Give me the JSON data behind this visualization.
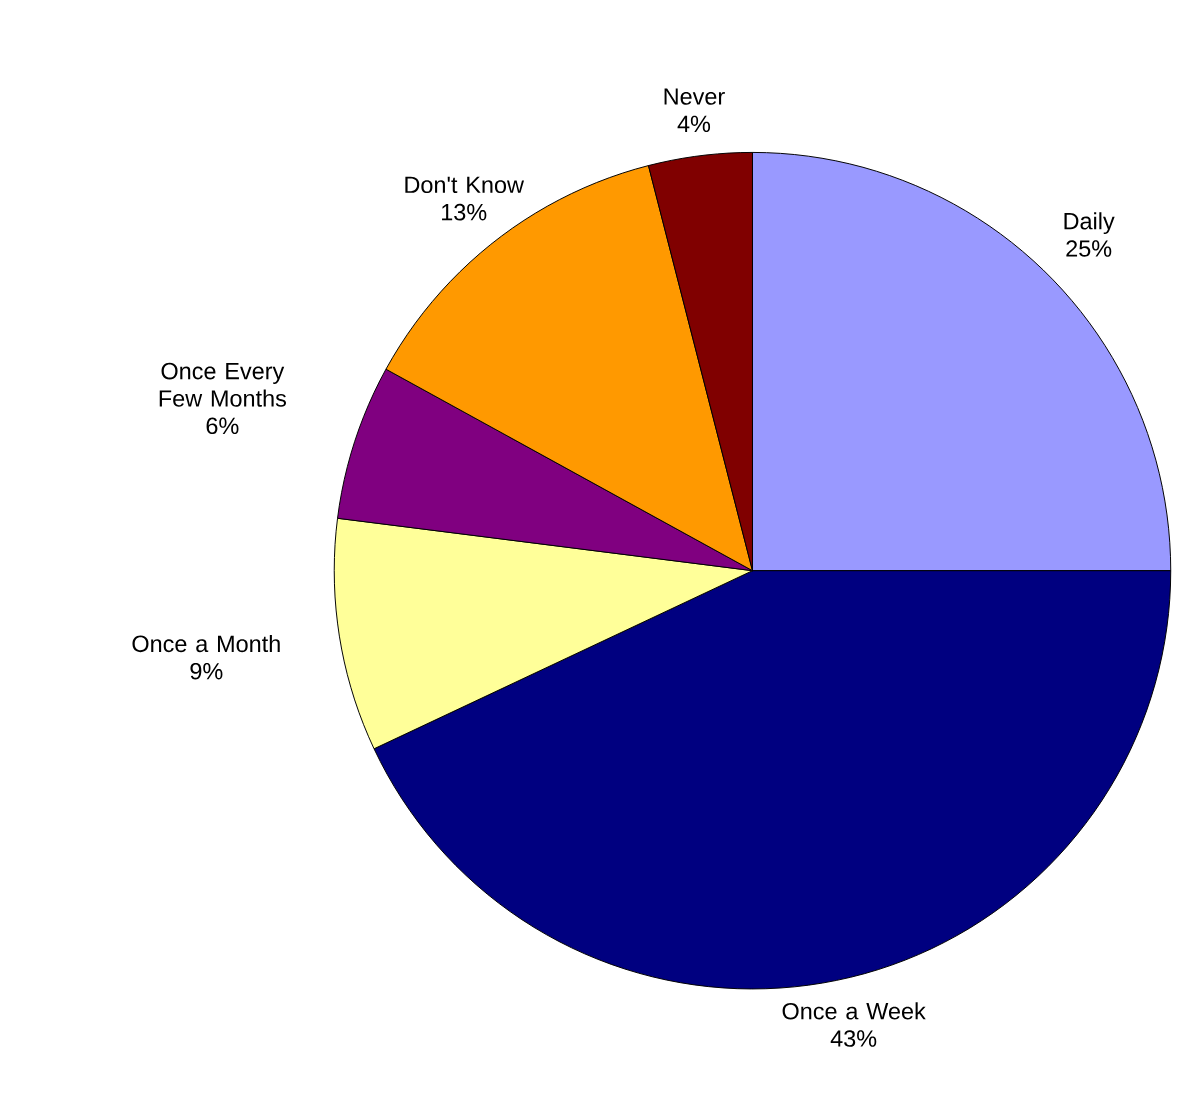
{
  "chart_data": {
    "type": "pie",
    "categories": [
      "Daily",
      "Once a Week",
      "Once a Month",
      "Once Every Few Months",
      "Don't Know",
      "Never"
    ],
    "values": [
      25,
      43,
      9,
      6,
      13,
      4
    ],
    "value_labels": [
      "25%",
      "43%",
      "9%",
      "6%",
      "13%",
      "4%"
    ],
    "colors": [
      "#9999ff",
      "#000080",
      "#ffff99",
      "#800080",
      "#ff9900",
      "#800000"
    ]
  }
}
